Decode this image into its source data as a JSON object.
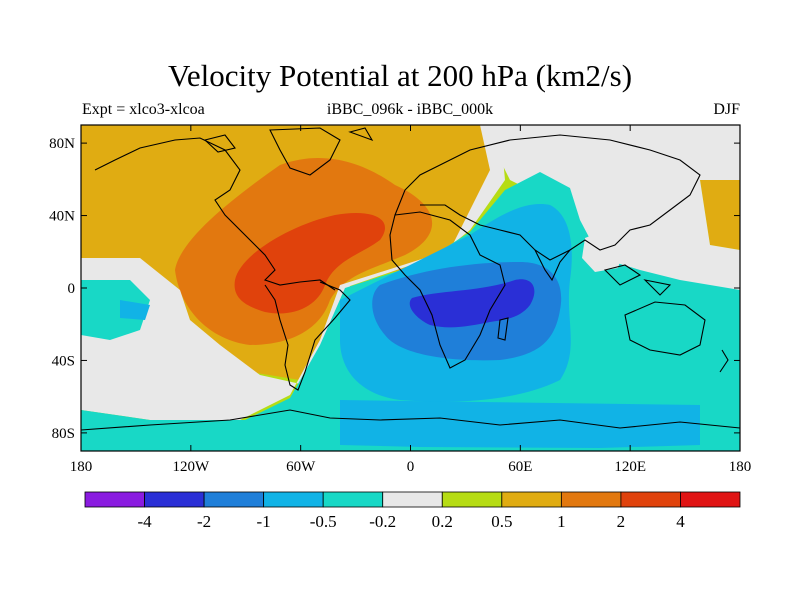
{
  "title": "Velocity Potential at 200 hPa (km2/s)",
  "subtitle_left": "Expt = xlco3-xlcoa",
  "subtitle_center": "iBBC_096k - iBBC_000k",
  "subtitle_right": "DJF",
  "lat_ticks": [
    "80N",
    "40N",
    "0",
    "40S",
    "80S"
  ],
  "lon_ticks": [
    "180",
    "120W",
    "60W",
    "0",
    "60E",
    "120E",
    "180"
  ],
  "colorbar": {
    "colors": [
      "#8a1be0",
      "#2a2fd6",
      "#1f7fd9",
      "#11b3e6",
      "#18d8c6",
      "#e8e8e8",
      "#b6dc14",
      "#e0ac12",
      "#e2780f",
      "#e0420c",
      "#e01414"
    ],
    "labels": [
      "-4",
      "-2",
      "-1",
      "-0.5",
      "-0.2",
      "0.2",
      "0.5",
      "1",
      "2",
      "4"
    ]
  },
  "chart_data": {
    "type": "heatmap",
    "title": "Velocity Potential at 200 hPa (km2/s)",
    "units": "km2/s",
    "projection": "cylindrical equidistant",
    "lon_range": [
      -180,
      180
    ],
    "lat_range": [
      -90,
      90
    ],
    "levels": [
      -4,
      -2,
      -1,
      -0.5,
      -0.2,
      0.2,
      0.5,
      1,
      2,
      4
    ],
    "features": [
      {
        "name": "positive maximum over tropical Atlantic / South America",
        "lon": -60,
        "lat": 10,
        "value_range": [
          2,
          4
        ]
      },
      {
        "name": "negative minimum over Africa / western Indian Ocean",
        "lon": 30,
        "lat": -10,
        "value_range": [
          -4,
          -2
        ]
      },
      {
        "name": "weak negative over western Pacific warm pool",
        "lon": 135,
        "lat": 10,
        "value_range": [
          -0.5,
          -0.2
        ]
      },
      {
        "name": "weak positive over eastern North Pacific",
        "lon": -150,
        "lat": 30,
        "value_range": [
          0.5,
          1
        ]
      }
    ]
  }
}
